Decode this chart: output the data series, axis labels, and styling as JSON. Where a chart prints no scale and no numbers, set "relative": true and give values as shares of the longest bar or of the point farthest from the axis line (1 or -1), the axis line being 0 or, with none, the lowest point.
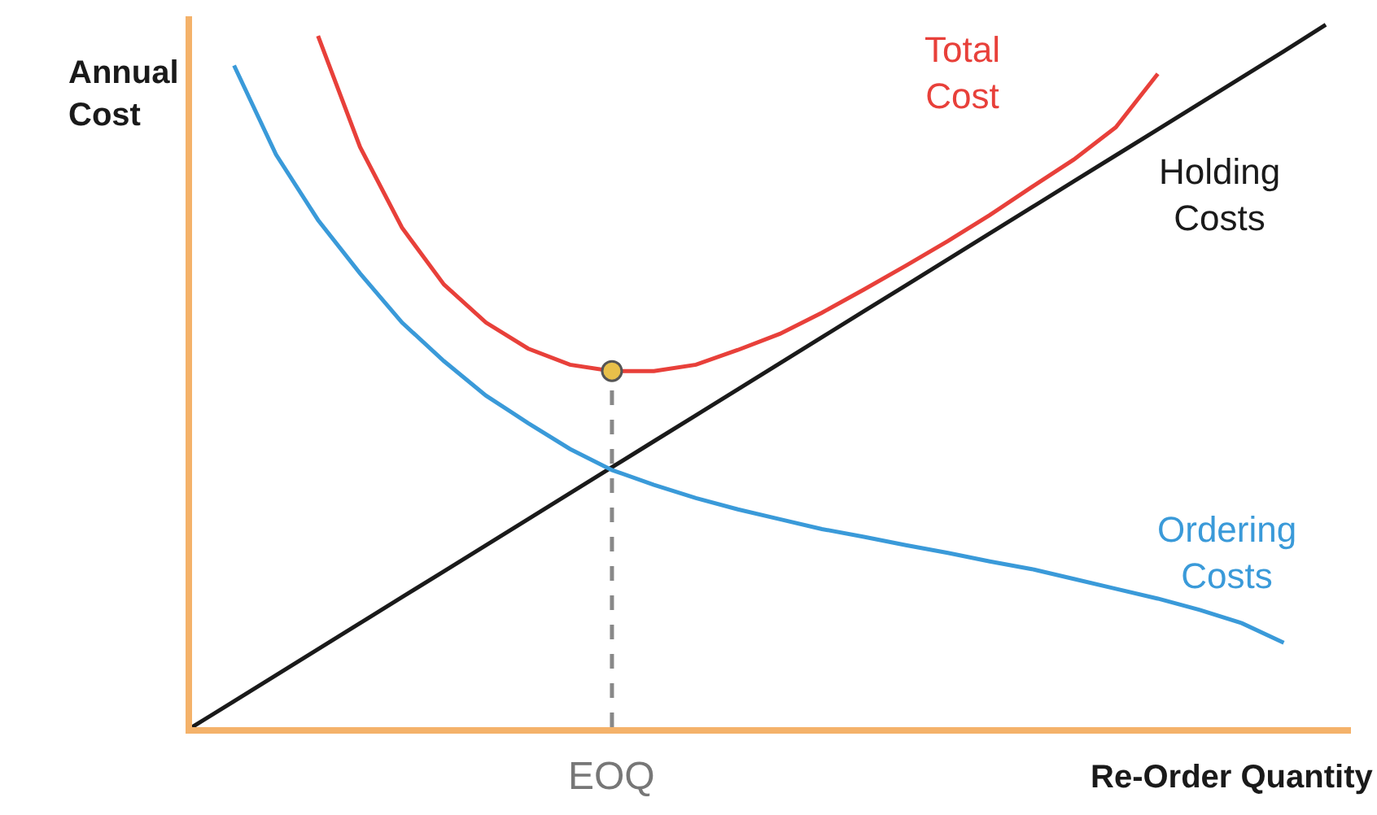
{
  "chart_data": {
    "type": "line",
    "relative": true,
    "xlabel": "Re-Order Quantity",
    "ylabel": "Annual Cost",
    "categories": [
      null,
      null,
      null,
      null,
      null,
      null,
      null,
      null,
      null,
      null,
      null,
      null,
      null,
      null,
      null,
      null,
      null,
      null,
      null,
      null,
      null,
      null,
      null,
      null,
      null,
      null,
      null,
      null
    ],
    "series": [
      {
        "name": "Total Cost",
        "color": "#e8403a",
        "values": [
          null,
          null,
          null,
          0.984,
          0.826,
          0.711,
          0.63,
          0.576,
          0.539,
          0.516,
          0.507,
          0.507,
          0.516,
          0.537,
          0.56,
          0.59,
          0.623,
          0.657,
          0.692,
          0.729,
          0.769,
          0.808,
          0.854,
          0.93,
          null,
          null,
          null,
          null
        ]
      },
      {
        "name": "Holding Costs",
        "color": "#1a1a1a",
        "values": [
          0,
          0.037,
          0.074,
          0.111,
          0.148,
          0.185,
          0.222,
          0.259,
          0.296,
          0.333,
          0.37,
          0.407,
          0.444,
          0.481,
          0.518,
          0.555,
          0.592,
          0.629,
          0.666,
          0.703,
          0.74,
          0.777,
          0.814,
          0.851,
          0.888,
          0.925,
          0.962,
          1
        ]
      },
      {
        "name": "Ordering Costs",
        "color": "#3a9ad9",
        "values": [
          null,
          0.942,
          0.815,
          0.722,
          0.646,
          0.576,
          0.521,
          0.472,
          0.433,
          0.396,
          0.366,
          0.345,
          0.326,
          0.31,
          0.296,
          0.282,
          0.271,
          0.259,
          0.248,
          0.236,
          0.225,
          0.211,
          0.197,
          0.183,
          0.167,
          0.148,
          0.12,
          null
        ]
      }
    ],
    "annotations": [
      "EOQ"
    ],
    "marker": "none",
    "line_style": "solid",
    "legend": false
  }
}
